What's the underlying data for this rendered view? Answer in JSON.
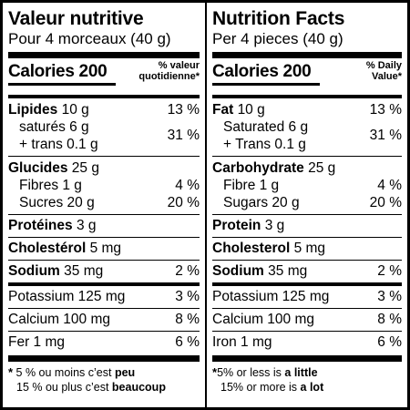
{
  "fr": {
    "title": "Valeur nutritive",
    "serving": "Pour 4 morceaux (40 g)",
    "calories_label": "Calories 200",
    "dv_head_line1": "% valeur",
    "dv_head_line2": "quotidienne*",
    "fat_label": "Lipides",
    "fat_amount": "10 g",
    "fat_pct": "13 %",
    "sat_line": "saturés 6 g",
    "trans_line": "+ trans 0.1 g",
    "sat_trans_pct": "31 %",
    "carb_label": "Glucides",
    "carb_amount": "25 g",
    "fibre_line": "Fibres 1 g",
    "fibre_pct": "4 %",
    "sugar_line": "Sucres 20 g",
    "sugar_pct": "20 %",
    "protein_label": "Protéines",
    "protein_amount": "3 g",
    "chol_label": "Cholestérol",
    "chol_amount": "5 mg",
    "sodium_label": "Sodium",
    "sodium_amount": "35 mg",
    "sodium_pct": "2 %",
    "potassium_line": "Potassium 125 mg",
    "potassium_pct": "3 %",
    "calcium_line": "Calcium 100 mg",
    "calcium_pct": "8 %",
    "iron_line": "Fer 1 mg",
    "iron_pct": "6 %",
    "foot1_a": "5 % ou moins c’est ",
    "foot1_b": "peu",
    "foot2_a": "15 % ou plus c’est ",
    "foot2_b": "beaucoup"
  },
  "en": {
    "title": "Nutrition Facts",
    "serving": "Per 4 pieces (40 g)",
    "calories_label": "Calories 200",
    "dv_head_line1": "% Daily",
    "dv_head_line2": "Value*",
    "fat_label": "Fat",
    "fat_amount": "10 g",
    "fat_pct": "13 %",
    "sat_line": "Saturated 6 g",
    "trans_line": "+ Trans 0.1 g",
    "sat_trans_pct": "31 %",
    "carb_label": "Carbohydrate",
    "carb_amount": "25 g",
    "fibre_line": "Fibre 1 g",
    "fibre_pct": "4 %",
    "sugar_line": "Sugars 20 g",
    "sugar_pct": "20 %",
    "protein_label": "Protein",
    "protein_amount": "3 g",
    "chol_label": "Cholesterol",
    "chol_amount": "5 mg",
    "sodium_label": "Sodium",
    "sodium_amount": "35 mg",
    "sodium_pct": "2 %",
    "potassium_line": "Potassium 125 mg",
    "potassium_pct": "3 %",
    "calcium_line": "Calcium 100 mg",
    "calcium_pct": "8 %",
    "iron_line": "Iron 1 mg",
    "iron_pct": "6 %",
    "foot1_a": "5% or less is ",
    "foot1_b": "a little",
    "foot2_a": "15% or more is ",
    "foot2_b": "a lot"
  },
  "footnote_star": "*"
}
